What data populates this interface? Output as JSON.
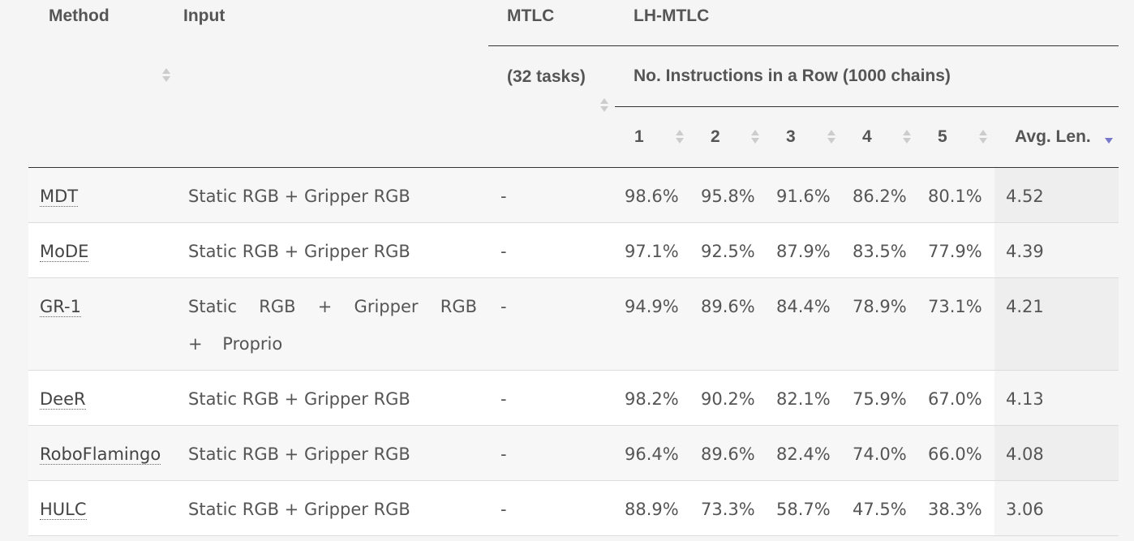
{
  "table": {
    "headers": {
      "method": "Method",
      "input": "Input",
      "mtlc": "MTLC",
      "mtlc_sub": "(32 tasks)",
      "lh_mtlc": "LH-MTLC",
      "instructions": "No. Instructions in a Row (1000 chains)",
      "n1": "1",
      "n2": "2",
      "n3": "3",
      "n4": "4",
      "n5": "5",
      "avg": "Avg. Len."
    },
    "sort": {
      "active_column": "Avg. Len.",
      "direction": "descending"
    },
    "rows": [
      {
        "method": "MDT",
        "input": "Static RGB + Gripper RGB",
        "mtlc": "-",
        "n1": "98.6%",
        "n2": "95.8%",
        "n3": "91.6%",
        "n4": "86.2%",
        "n5": "80.1%",
        "avg": "4.52"
      },
      {
        "method": "MoDE",
        "input": "Static RGB + Gripper RGB",
        "mtlc": "-",
        "n1": "97.1%",
        "n2": "92.5%",
        "n3": "87.9%",
        "n4": "83.5%",
        "n5": "77.9%",
        "avg": "4.39"
      },
      {
        "method": "GR-1",
        "input": "Static RGB + Gripper RGB + Proprio",
        "mtlc": "-",
        "n1": "94.9%",
        "n2": "89.6%",
        "n3": "84.4%",
        "n4": "78.9%",
        "n5": "73.1%",
        "avg": "4.21"
      },
      {
        "method": "DeeR",
        "input": "Static RGB + Gripper RGB",
        "mtlc": "-",
        "n1": "98.2%",
        "n2": "90.2%",
        "n3": "82.1%",
        "n4": "75.9%",
        "n5": "67.0%",
        "avg": "4.13"
      },
      {
        "method": "RoboFlamingo",
        "input": "Static RGB + Gripper RGB",
        "mtlc": "-",
        "n1": "96.4%",
        "n2": "89.6%",
        "n3": "82.4%",
        "n4": "74.0%",
        "n5": "66.0%",
        "avg": "4.08"
      },
      {
        "method": "HULC",
        "input": "Static RGB + Gripper RGB",
        "mtlc": "-",
        "n1": "88.9%",
        "n2": "73.3%",
        "n3": "58.7%",
        "n4": "47.5%",
        "n5": "38.3%",
        "avg": "3.06"
      }
    ]
  },
  "colors": {
    "page_background": "#f5f5f5",
    "row_odd": "#f7f7f7",
    "row_even": "#ffffff",
    "active_sort_arrow": "#7777cc",
    "inactive_sort_arrow": "#cccccc",
    "text": "#555555"
  }
}
